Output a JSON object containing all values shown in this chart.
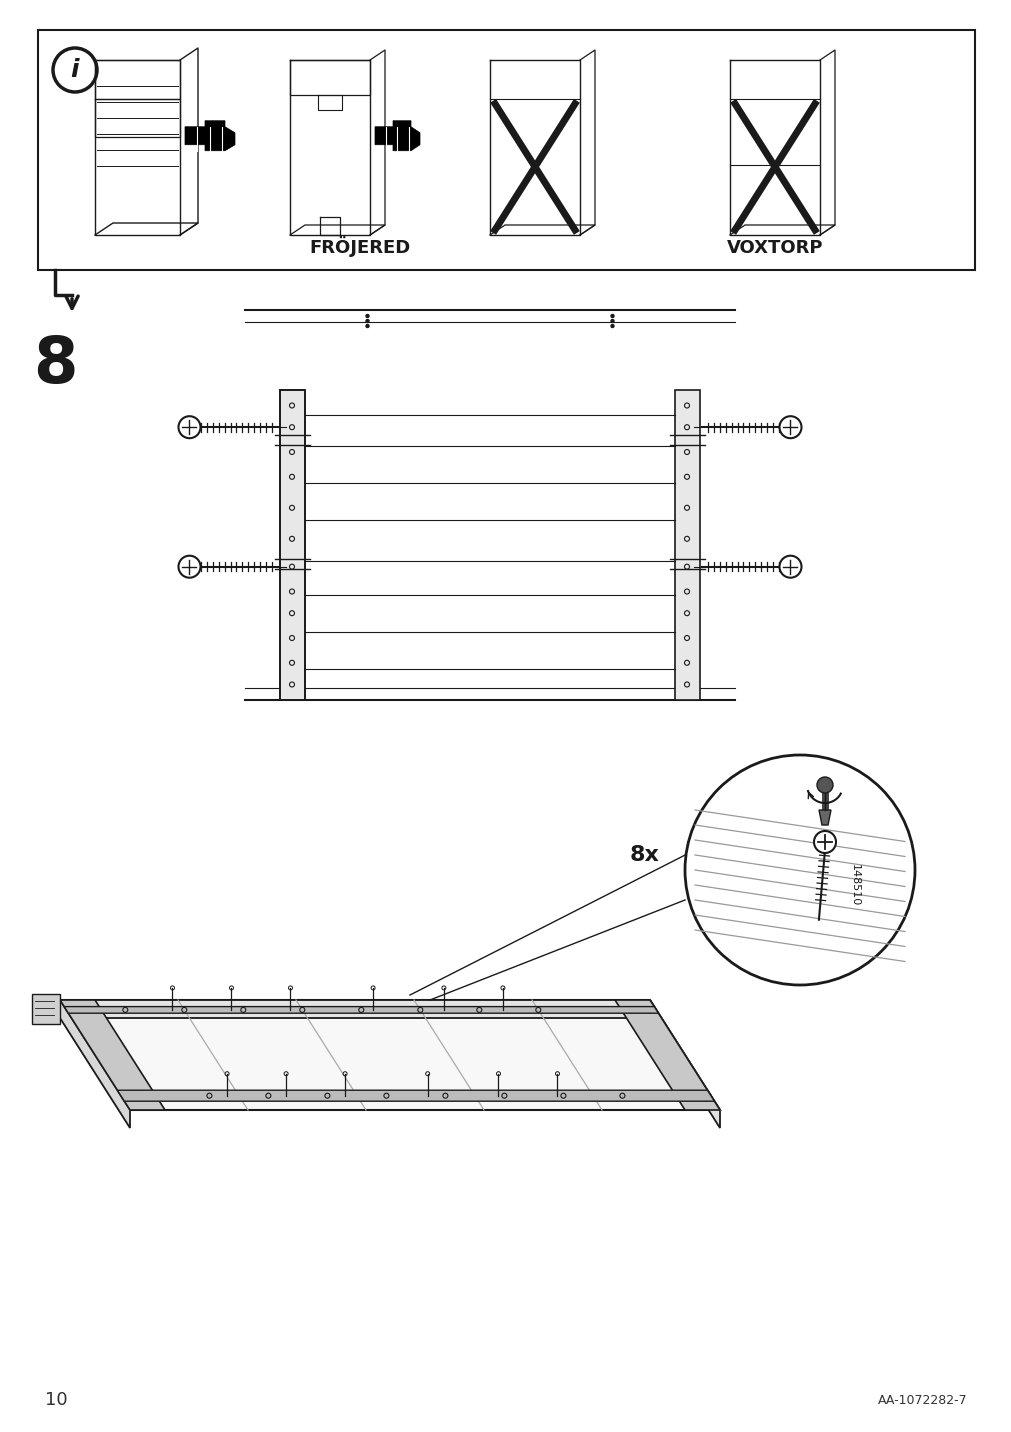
{
  "bg_color": "#ffffff",
  "line_color": "#1a1a1a",
  "gray_color": "#888888",
  "light_gray": "#cccccc",
  "page_number": "10",
  "doc_number": "AA-1072282-7",
  "step_number": "8",
  "screw_count": "8x",
  "part_number": "148510",
  "label1": "FRÖJERED",
  "label2": "VOXTORP",
  "figsize": [
    10.12,
    14.32
  ],
  "dpi": 100
}
